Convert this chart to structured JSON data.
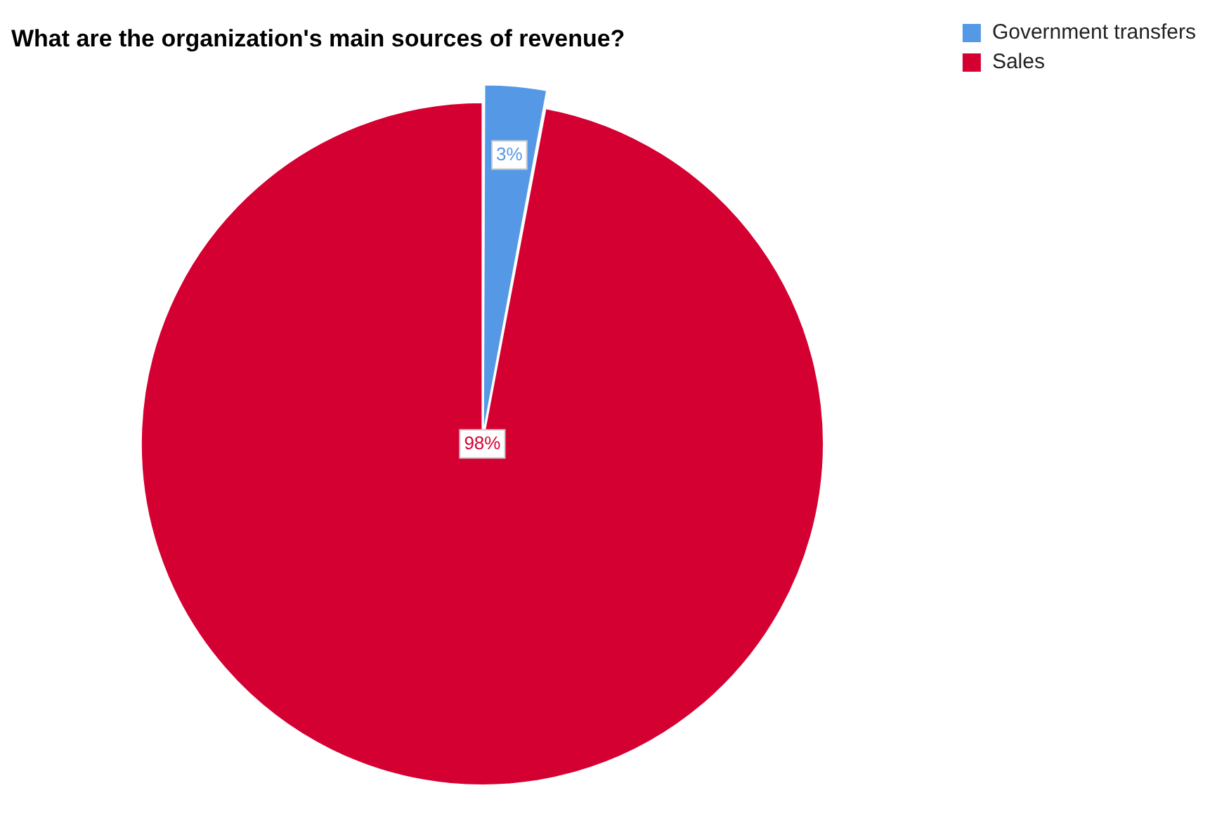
{
  "chart_data": {
    "type": "pie",
    "title": "What are the organization's main sources of revenue?",
    "categories": [
      "Government transfers",
      "Sales"
    ],
    "values": [
      3,
      98
    ],
    "colors": [
      "#5599e6",
      "#d50032"
    ],
    "value_labels": [
      "3%",
      "98%"
    ],
    "legend": "top right"
  }
}
